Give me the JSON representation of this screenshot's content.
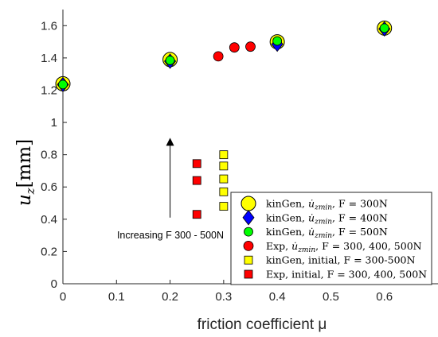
{
  "chart_data": {
    "type": "scatter",
    "xlabel": "friction coefficient μ",
    "ylabel_main": "u",
    "ylabel_sub": "z",
    "ylabel_unit": "[mm]",
    "xlim": [
      0,
      0.7
    ],
    "ylim": [
      0,
      1.7
    ],
    "xticks": [
      0,
      0.1,
      0.2,
      0.3,
      0.4,
      0.5,
      0.6
    ],
    "xtick_labels": [
      "0",
      "0.1",
      "0.2",
      "0.3",
      "0.4",
      "0.5",
      "0.6"
    ],
    "yticks": [
      0,
      0.2,
      0.4,
      0.6,
      0.8,
      1,
      1.2,
      1.4,
      1.6
    ],
    "ytick_labels": [
      "0",
      "0.2",
      "0.4",
      "0.6",
      "0.8",
      "1",
      "1.2",
      "1.4",
      "1.6"
    ],
    "grid": false,
    "legend_position": "bottom-right",
    "annotation": {
      "text": "Increasing F 300 - 500N",
      "arrow_x": 0.2,
      "arrow_from_y": 0.41,
      "arrow_to_y": 0.88
    },
    "series": [
      {
        "name": "kinGen, u̇zmin, F = 300N",
        "legend_pre": "kinGen, ",
        "legend_sym": "u̇",
        "legend_sub": "zmin",
        "legend_post": ", F = 300N",
        "marker": "circle-large",
        "color": "#ffff00",
        "x": [
          0,
          0.2,
          0.4,
          0.6
        ],
        "y": [
          1.24,
          1.39,
          1.5,
          1.585
        ]
      },
      {
        "name": "kinGen, u̇zmin, F = 400N",
        "legend_pre": "kinGen, ",
        "legend_sym": "u̇",
        "legend_sub": "zmin",
        "legend_post": ", F = 400N",
        "marker": "diamond",
        "color": "#0000ff",
        "x": [
          0,
          0.2,
          0.4,
          0.6
        ],
        "y": [
          1.235,
          1.38,
          1.485,
          1.58
        ]
      },
      {
        "name": "kinGen, u̇zmin, F = 500N",
        "legend_pre": "kinGen, ",
        "legend_sym": "u̇",
        "legend_sub": "zmin",
        "legend_post": ", F = 500N",
        "marker": "circle-small",
        "color": "#00ff00",
        "x": [
          0,
          0.2,
          0.4,
          0.6
        ],
        "y": [
          1.235,
          1.385,
          1.505,
          1.585
        ]
      },
      {
        "name": "Exp, u̇zmin, F = 300, 400, 500N",
        "legend_pre": "Exp, ",
        "legend_sym": "u̇",
        "legend_sub": "zmin",
        "legend_post": ", F = 300, 400, 500N",
        "marker": "circle-medium",
        "color": "#ff0000",
        "x": [
          0.29,
          0.32,
          0.35
        ],
        "y": [
          1.41,
          1.465,
          1.47
        ]
      },
      {
        "name": "kinGen, initial, F = 300-500N",
        "legend_pre": "kinGen, initial, F = 300-500N",
        "marker": "square",
        "color": "#ffff00",
        "x": [
          0.3,
          0.3,
          0.3,
          0.3,
          0.3
        ],
        "y": [
          0.8,
          0.73,
          0.65,
          0.57,
          0.48
        ]
      },
      {
        "name": "Exp, initial, F = 300, 400, 500N",
        "legend_pre": "Exp, initial, F = 300, 400, 500N",
        "marker": "square",
        "color": "#ff0000",
        "x": [
          0.25,
          0.25,
          0.25
        ],
        "y": [
          0.745,
          0.64,
          0.43
        ]
      }
    ]
  }
}
